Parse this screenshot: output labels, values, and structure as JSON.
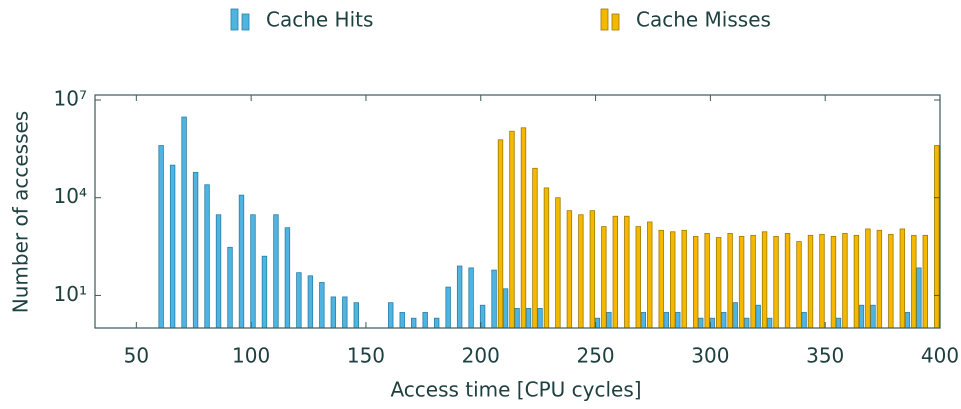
{
  "chart_data": {
    "type": "bar",
    "log_y": true,
    "x_label": "Access time [CPU cycles]",
    "y_label": "Number of accesses",
    "x": [
      60,
      65,
      70,
      75,
      80,
      85,
      90,
      95,
      100,
      105,
      110,
      115,
      120,
      125,
      130,
      135,
      140,
      145,
      150,
      155,
      160,
      165,
      170,
      175,
      180,
      185,
      190,
      195,
      200,
      205,
      210,
      215,
      220,
      225,
      230,
      235,
      240,
      245,
      250,
      255,
      260,
      265,
      270,
      275,
      280,
      285,
      290,
      295,
      300,
      305,
      310,
      315,
      320,
      325,
      330,
      335,
      340,
      345,
      350,
      355,
      360,
      365,
      370,
      375,
      380,
      385,
      390,
      395,
      400
    ],
    "series": [
      {
        "name": "Cache Hits",
        "color": "#50b4e0",
        "values": [
          400000,
          100000,
          3000000,
          60000,
          25000,
          3000,
          300,
          12000,
          3000,
          160,
          3000,
          1200,
          50,
          40,
          25,
          9,
          9,
          6,
          null,
          null,
          6,
          3,
          2,
          3,
          2,
          18,
          80,
          70,
          5,
          60,
          16,
          4,
          4,
          4,
          null,
          null,
          null,
          null,
          2,
          3,
          null,
          null,
          3,
          null,
          3,
          3,
          null,
          2,
          2,
          3,
          6,
          2,
          5,
          2,
          null,
          null,
          3,
          null,
          null,
          2,
          null,
          5,
          5,
          null,
          null,
          3,
          70,
          null,
          null
        ]
      },
      {
        "name": "Cache Misses",
        "color": "#f5b800",
        "values": [
          null,
          null,
          null,
          null,
          null,
          null,
          null,
          null,
          null,
          null,
          null,
          null,
          null,
          null,
          null,
          null,
          null,
          null,
          null,
          null,
          null,
          null,
          null,
          null,
          null,
          null,
          null,
          null,
          null,
          null,
          600000,
          1100000,
          1400000,
          80000,
          20000,
          10000,
          4000,
          3000,
          4000,
          1300,
          2700,
          2700,
          1300,
          1800,
          1000,
          900,
          1000,
          650,
          800,
          600,
          800,
          650,
          700,
          900,
          650,
          800,
          450,
          700,
          750,
          650,
          800,
          700,
          1100,
          1000,
          750,
          1100,
          700,
          700,
          400000
        ]
      }
    ],
    "xlim": [
      32,
      400
    ],
    "xticks": [
      50,
      100,
      150,
      200,
      250,
      300,
      350,
      400
    ],
    "ylim": [
      1,
      10000000
    ],
    "yticks": [
      {
        "value": 10,
        "label": "10¹"
      },
      {
        "value": 10000,
        "label": "10⁴"
      },
      {
        "value": 10000000,
        "label": "10⁷"
      }
    ]
  }
}
